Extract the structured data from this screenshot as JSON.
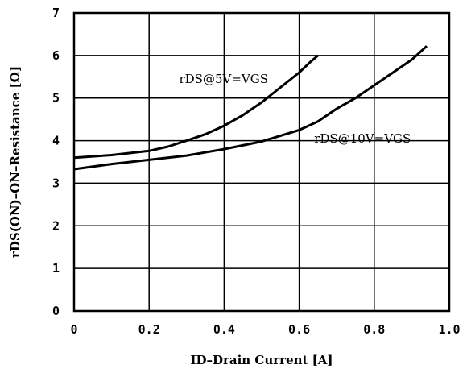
{
  "chart_data": {
    "type": "line",
    "xlabel": "ID–Drain Current [A]",
    "ylabel": "rDS(ON)–ON–Resistance [Ω]",
    "xlim": [
      0,
      1.0
    ],
    "ylim": [
      0,
      7
    ],
    "x_ticks": [
      "0",
      "0.2",
      "0.4",
      "0.6",
      "0.8",
      "1.0"
    ],
    "y_ticks": [
      "0",
      "1",
      "2",
      "3",
      "4",
      "5",
      "6",
      "7"
    ],
    "grid": true,
    "series": [
      {
        "name": "rDS@5V=VGS",
        "label_at": [
          0.28,
          5.35
        ],
        "points": [
          [
            0,
            3.6
          ],
          [
            0.1,
            3.66
          ],
          [
            0.2,
            3.76
          ],
          [
            0.25,
            3.86
          ],
          [
            0.3,
            4.0
          ],
          [
            0.35,
            4.15
          ],
          [
            0.4,
            4.35
          ],
          [
            0.45,
            4.6
          ],
          [
            0.5,
            4.9
          ],
          [
            0.55,
            5.25
          ],
          [
            0.6,
            5.6
          ],
          [
            0.63,
            5.85
          ],
          [
            0.65,
            6.0
          ]
        ]
      },
      {
        "name": "rDS@10V=VGS",
        "label_at": [
          0.64,
          3.95
        ],
        "points": [
          [
            0,
            3.33
          ],
          [
            0.1,
            3.45
          ],
          [
            0.2,
            3.55
          ],
          [
            0.3,
            3.65
          ],
          [
            0.4,
            3.8
          ],
          [
            0.5,
            3.98
          ],
          [
            0.6,
            4.25
          ],
          [
            0.65,
            4.45
          ],
          [
            0.7,
            4.75
          ],
          [
            0.75,
            5.0
          ],
          [
            0.8,
            5.3
          ],
          [
            0.85,
            5.6
          ],
          [
            0.9,
            5.9
          ],
          [
            0.94,
            6.22
          ]
        ]
      }
    ]
  }
}
